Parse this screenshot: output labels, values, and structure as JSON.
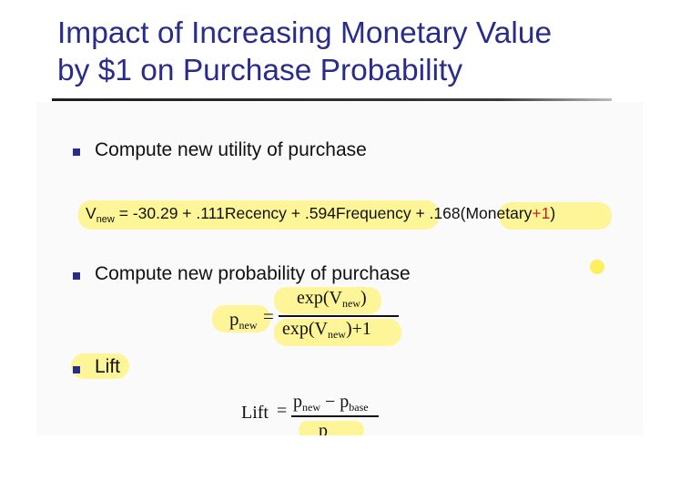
{
  "slide": {
    "title_line1": "Impact of Increasing Monetary Value",
    "title_line2": "by $1 on Purchase Probability"
  },
  "bullets": [
    {
      "text": "Compute new utility of purchase"
    },
    {
      "text": "Compute new probability of purchase"
    },
    {
      "text": "Lift"
    }
  ],
  "utility_equation": {
    "v": "V",
    "v_sub": "new",
    "rhs_main": " = -30.29 + .111Recency + .594Frequency + .168(Monetary",
    "plus_one": "+1",
    "close_paren": ")"
  },
  "probability_equation": {
    "lhs": "p",
    "lhs_sub": "new",
    "equals": "=",
    "num_pre": "exp(V",
    "num_sub": "new",
    "num_post": ")",
    "den_pre": "exp(V",
    "den_sub": "new",
    "den_post": ")+1"
  },
  "lift_equation": {
    "lhs": "Lift",
    "equals": "=",
    "num_p1": "p",
    "num_p1_sub": "new",
    "minus": " − ",
    "num_p2": "p",
    "num_p2_sub": "base",
    "den_partial": "p"
  },
  "colors": {
    "title": "#2a2c8c",
    "bullet": "#2a2c8c",
    "highlight": "#fff046",
    "accent_red": "#cc2222"
  }
}
